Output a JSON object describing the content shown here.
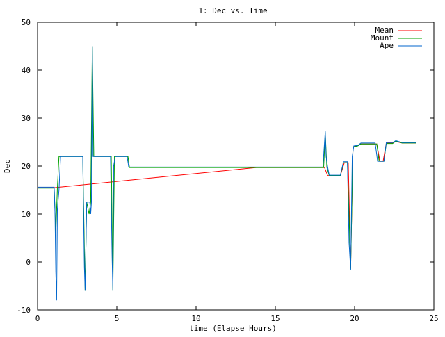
{
  "chart_data": {
    "type": "line",
    "title": "1: Dec vs. Time",
    "xlabel": "time (Elapse Hours)",
    "ylabel": "Dec",
    "xlim": [
      0,
      25
    ],
    "ylim": [
      -10,
      50
    ],
    "x_ticks": [
      0,
      5,
      10,
      15,
      20,
      25
    ],
    "y_ticks": [
      -10,
      0,
      10,
      20,
      30,
      40,
      50
    ],
    "legend_position": "top-right",
    "grid": false,
    "series": [
      {
        "name": "Mean",
        "color": "#ff0000",
        "points": [
          [
            0.0,
            15.5
          ],
          [
            1.05,
            15.5
          ],
          [
            13.8,
            19.7
          ],
          [
            18.1,
            19.7
          ],
          [
            18.3,
            18.0
          ],
          [
            19.1,
            18.0
          ],
          [
            19.35,
            20.7
          ],
          [
            19.6,
            20.7
          ],
          [
            19.75,
            -1.3
          ],
          [
            19.9,
            24.0
          ],
          [
            20.2,
            24.3
          ],
          [
            20.4,
            24.6
          ],
          [
            21.4,
            24.6
          ],
          [
            21.6,
            21.0
          ],
          [
            21.8,
            21.0
          ],
          [
            22.0,
            24.8
          ],
          [
            22.4,
            24.8
          ],
          [
            22.6,
            25.1
          ],
          [
            23.0,
            24.8
          ],
          [
            23.5,
            24.8
          ],
          [
            23.9,
            24.8
          ]
        ]
      },
      {
        "name": "Mount",
        "color": "#00a000",
        "points": [
          [
            0.0,
            15.4
          ],
          [
            1.05,
            15.4
          ],
          [
            1.15,
            6.0
          ],
          [
            1.25,
            15.5
          ],
          [
            1.35,
            22.0
          ],
          [
            2.85,
            22.0
          ],
          [
            3.0,
            -6.0
          ],
          [
            3.1,
            12.5
          ],
          [
            3.25,
            10.0
          ],
          [
            3.35,
            12.5
          ],
          [
            3.45,
            45.0
          ],
          [
            3.55,
            22.0
          ],
          [
            4.65,
            22.0
          ],
          [
            4.75,
            -6.0
          ],
          [
            4.85,
            22.0
          ],
          [
            5.7,
            22.0
          ],
          [
            5.8,
            19.7
          ],
          [
            18.05,
            19.7
          ],
          [
            18.15,
            27.0
          ],
          [
            18.25,
            19.7
          ],
          [
            18.4,
            18.0
          ],
          [
            19.1,
            18.0
          ],
          [
            19.3,
            20.7
          ],
          [
            19.55,
            20.7
          ],
          [
            19.75,
            -1.5
          ],
          [
            19.9,
            24.0
          ],
          [
            20.2,
            24.2
          ],
          [
            20.4,
            24.6
          ],
          [
            21.4,
            24.6
          ],
          [
            21.55,
            21.0
          ],
          [
            21.85,
            21.0
          ],
          [
            22.0,
            24.7
          ],
          [
            22.4,
            24.7
          ],
          [
            22.6,
            25.2
          ],
          [
            23.0,
            24.8
          ],
          [
            23.9,
            24.8
          ]
        ]
      },
      {
        "name": "Ape",
        "color": "#0066cc",
        "points": [
          [
            0.0,
            15.6
          ],
          [
            1.05,
            15.6
          ],
          [
            1.1,
            10.0
          ],
          [
            1.15,
            -2.0
          ],
          [
            1.2,
            -8.0
          ],
          [
            1.25,
            11.0
          ],
          [
            1.35,
            15.0
          ],
          [
            1.45,
            22.0
          ],
          [
            2.85,
            22.0
          ],
          [
            2.95,
            -1.0
          ],
          [
            3.0,
            -6.0
          ],
          [
            3.1,
            12.5
          ],
          [
            3.3,
            12.5
          ],
          [
            3.35,
            10.0
          ],
          [
            3.4,
            12.5
          ],
          [
            3.45,
            45.0
          ],
          [
            3.5,
            22.0
          ],
          [
            4.6,
            22.0
          ],
          [
            4.7,
            1.0
          ],
          [
            4.75,
            -6.0
          ],
          [
            4.8,
            20.0
          ],
          [
            4.9,
            22.0
          ],
          [
            5.65,
            22.0
          ],
          [
            5.75,
            19.8
          ],
          [
            18.0,
            19.8
          ],
          [
            18.15,
            27.3
          ],
          [
            18.2,
            22.0
          ],
          [
            18.3,
            19.8
          ],
          [
            18.4,
            18.1
          ],
          [
            19.1,
            18.1
          ],
          [
            19.3,
            20.9
          ],
          [
            19.55,
            20.9
          ],
          [
            19.65,
            4.0
          ],
          [
            19.75,
            -1.7
          ],
          [
            19.85,
            22.0
          ],
          [
            19.95,
            24.2
          ],
          [
            20.2,
            24.3
          ],
          [
            20.4,
            24.8
          ],
          [
            21.3,
            24.8
          ],
          [
            21.45,
            21.0
          ],
          [
            21.85,
            21.0
          ],
          [
            22.0,
            24.9
          ],
          [
            22.4,
            24.9
          ],
          [
            22.6,
            25.3
          ],
          [
            23.0,
            24.9
          ],
          [
            23.5,
            24.9
          ],
          [
            23.9,
            24.9
          ]
        ]
      }
    ]
  }
}
